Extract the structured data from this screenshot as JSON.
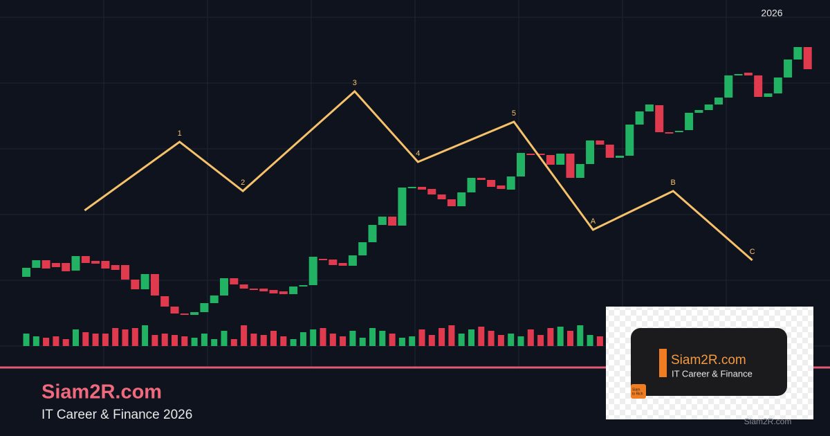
{
  "header_year": "2026",
  "chart_data": {
    "type": "candlestick",
    "xlim": [
      0,
      80
    ],
    "ylim": [
      0,
      500
    ],
    "vlim": [
      0,
      100
    ],
    "up_color": "#22b263",
    "down_color": "#e03a4e",
    "open": [
      100,
      113,
      124,
      120,
      120,
      109,
      130,
      123,
      123,
      117,
      117,
      96,
      82,
      104,
      72,
      57,
      47,
      45,
      49,
      62,
      73,
      98,
      89,
      83,
      83,
      81,
      79,
      75,
      86,
      88,
      126,
      125,
      120,
      116,
      131,
      150,
      175,
      187,
      174,
      229,
      230,
      227,
      219,
      212,
      202,
      222,
      243,
      240,
      232,
      226,
      245,
      278,
      278,
      276,
      262,
      278,
      243,
      263,
      297,
      291,
      272,
      275,
      320,
      339,
      348,
      309,
      310,
      312,
      337,
      341,
      349,
      359,
      391,
      395,
      391,
      360,
      365,
      388,
      414,
      432
    ],
    "close": [
      113,
      124,
      112,
      114,
      108,
      130,
      120,
      119,
      112,
      110,
      96,
      82,
      104,
      73,
      57,
      47,
      45,
      49,
      62,
      73,
      98,
      89,
      83,
      81,
      79,
      76,
      75,
      86,
      88,
      129,
      124,
      117,
      116,
      131,
      150,
      175,
      187,
      174,
      229,
      230,
      226,
      219,
      212,
      202,
      222,
      243,
      240,
      230,
      227,
      245,
      279,
      276,
      276,
      262,
      278,
      243,
      263,
      297,
      291,
      272,
      275,
      320,
      339,
      349,
      309,
      308,
      311,
      337,
      341,
      349,
      359,
      391,
      393,
      391,
      360,
      365,
      388,
      414,
      432,
      400
    ],
    "volume": [
      18,
      14,
      12,
      14,
      10,
      24,
      20,
      18,
      18,
      26,
      24,
      26,
      30,
      16,
      18,
      16,
      14,
      12,
      18,
      10,
      22,
      10,
      30,
      18,
      16,
      22,
      14,
      10,
      20,
      24,
      26,
      18,
      14,
      22,
      12,
      26,
      22,
      18,
      12,
      14,
      24,
      16,
      26,
      30,
      18,
      24,
      28,
      22,
      16,
      18,
      14,
      24,
      16,
      26,
      28,
      22,
      30,
      16,
      14,
      18,
      22,
      28,
      24,
      26,
      18,
      20,
      30,
      22,
      24,
      26,
      18,
      28,
      22,
      24,
      20,
      26,
      18,
      22,
      24,
      20
    ],
    "wave": {
      "color": "#f5c26b",
      "x": [
        6.4,
        16,
        22.4,
        33.7,
        40.1,
        49.8,
        57.8,
        65.9,
        73.9
      ],
      "values": [
        196,
        295,
        224,
        368,
        266,
        324,
        168,
        224,
        124
      ],
      "labels": [
        null,
        "1",
        "2",
        "3",
        "4",
        "5",
        "A",
        "B",
        "C"
      ]
    }
  },
  "footer": {
    "title": "Siam2R.com",
    "subtitle": "IT Career & Finance 2026"
  },
  "logo": {
    "title": "Siam2R.com",
    "subtitle": "IT Career & Finance",
    "badge": [
      "Siam",
      "to Rich"
    ]
  },
  "watermark": "Siam2R.com"
}
